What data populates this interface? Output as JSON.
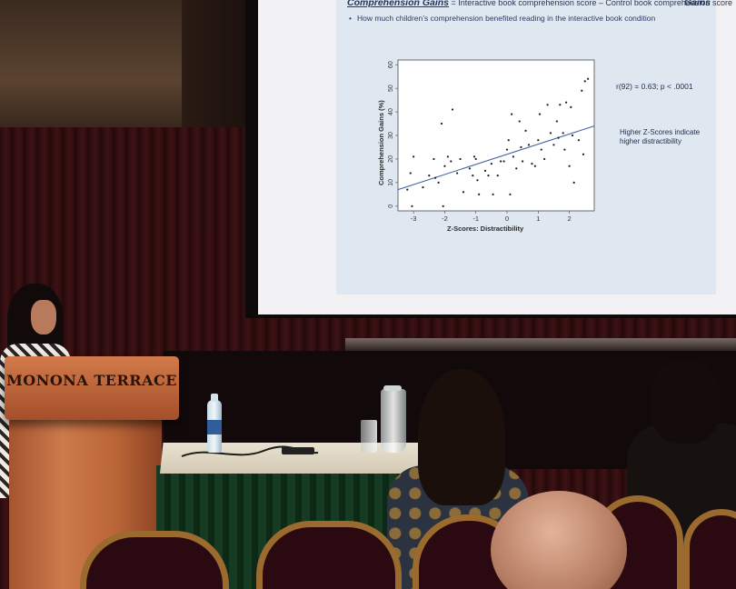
{
  "slide": {
    "title_em": "Comprehension Gains",
    "title_rest": " = Interactive book comprehension score – Control book comprehension score",
    "corner_text": "Gains",
    "bullet": "How much children’s comprehension benefited reading in the interactive book condition",
    "stat": "r(92) = 0.63; p < .0001",
    "note_line1": "Higher Z-Scores indicate",
    "note_line2": "higher distractibility"
  },
  "podium": {
    "label": "MONONA TERRACE"
  },
  "chart_data": {
    "type": "scatter",
    "xlabel": "Z-Scores: Distractibility",
    "ylabel": "Comprehension Gains (%)",
    "xlim": [
      -3.5,
      2.8
    ],
    "ylim": [
      -2,
      62
    ],
    "xticks": [
      -3,
      -2,
      -1,
      0,
      1,
      2
    ],
    "yticks": [
      0,
      10,
      20,
      30,
      40,
      50,
      60
    ],
    "trendline": {
      "x": [
        -3.5,
        2.8
      ],
      "y": [
        7,
        34
      ]
    },
    "points": [
      {
        "x": -3.2,
        "y": 7
      },
      {
        "x": -3.1,
        "y": 14
      },
      {
        "x": -3.0,
        "y": 21
      },
      {
        "x": -3.05,
        "y": 0
      },
      {
        "x": -2.7,
        "y": 8
      },
      {
        "x": -2.5,
        "y": 13
      },
      {
        "x": -2.3,
        "y": 12
      },
      {
        "x": -2.35,
        "y": 20
      },
      {
        "x": -2.2,
        "y": 10
      },
      {
        "x": -2.1,
        "y": 35
      },
      {
        "x": -2.0,
        "y": 17
      },
      {
        "x": -2.05,
        "y": 0
      },
      {
        "x": -1.9,
        "y": 21
      },
      {
        "x": -1.8,
        "y": 19
      },
      {
        "x": -1.75,
        "y": 41
      },
      {
        "x": -1.6,
        "y": 14
      },
      {
        "x": -1.5,
        "y": 20
      },
      {
        "x": -1.4,
        "y": 6
      },
      {
        "x": -1.2,
        "y": 16
      },
      {
        "x": -1.1,
        "y": 13
      },
      {
        "x": -1.05,
        "y": 21
      },
      {
        "x": -1.0,
        "y": 20
      },
      {
        "x": -0.95,
        "y": 11
      },
      {
        "x": -0.9,
        "y": 5
      },
      {
        "x": -0.7,
        "y": 15
      },
      {
        "x": -0.6,
        "y": 13
      },
      {
        "x": -0.5,
        "y": 18
      },
      {
        "x": -0.45,
        "y": 5
      },
      {
        "x": -0.3,
        "y": 13
      },
      {
        "x": -0.2,
        "y": 19
      },
      {
        "x": -0.1,
        "y": 19
      },
      {
        "x": 0.0,
        "y": 24
      },
      {
        "x": 0.05,
        "y": 28
      },
      {
        "x": 0.1,
        "y": 5
      },
      {
        "x": 0.15,
        "y": 39
      },
      {
        "x": 0.2,
        "y": 21
      },
      {
        "x": 0.3,
        "y": 16
      },
      {
        "x": 0.4,
        "y": 36
      },
      {
        "x": 0.45,
        "y": 25
      },
      {
        "x": 0.5,
        "y": 19
      },
      {
        "x": 0.6,
        "y": 32
      },
      {
        "x": 0.7,
        "y": 26
      },
      {
        "x": 0.8,
        "y": 18
      },
      {
        "x": 0.9,
        "y": 17
      },
      {
        "x": 1.0,
        "y": 28
      },
      {
        "x": 1.05,
        "y": 39
      },
      {
        "x": 1.1,
        "y": 24
      },
      {
        "x": 1.2,
        "y": 20
      },
      {
        "x": 1.3,
        "y": 43
      },
      {
        "x": 1.4,
        "y": 31
      },
      {
        "x": 1.5,
        "y": 26
      },
      {
        "x": 1.6,
        "y": 36
      },
      {
        "x": 1.65,
        "y": 29
      },
      {
        "x": 1.7,
        "y": 43
      },
      {
        "x": 1.8,
        "y": 31
      },
      {
        "x": 1.85,
        "y": 24
      },
      {
        "x": 1.9,
        "y": 44
      },
      {
        "x": 2.0,
        "y": 17
      },
      {
        "x": 2.05,
        "y": 42
      },
      {
        "x": 2.1,
        "y": 30
      },
      {
        "x": 2.15,
        "y": 10
      },
      {
        "x": 2.3,
        "y": 28
      },
      {
        "x": 2.4,
        "y": 49
      },
      {
        "x": 2.45,
        "y": 22
      },
      {
        "x": 2.5,
        "y": 53
      },
      {
        "x": 2.6,
        "y": 54
      }
    ]
  }
}
